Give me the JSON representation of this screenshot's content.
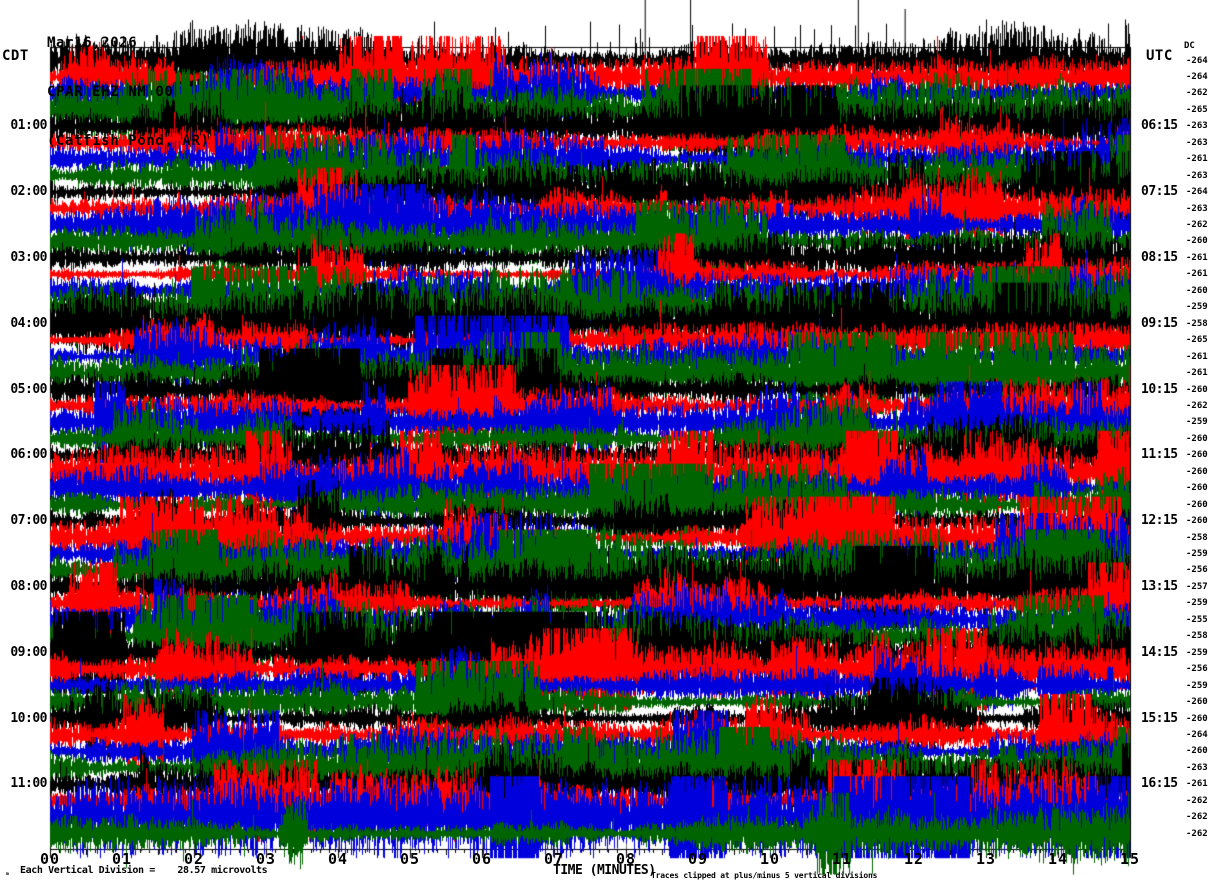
{
  "header": {
    "date": "Mar16,2026",
    "station": "CPAR EHZ NM 00",
    "location": "(Catfish Pond, AR)"
  },
  "axes": {
    "left_header": "CDT",
    "right_header": "UTC",
    "dc_header": "DC",
    "left_labels": [
      "01:00",
      "02:00",
      "03:00",
      "04:00",
      "05:00",
      "06:00",
      "07:00",
      "08:00",
      "09:00",
      "10:00",
      "11:00"
    ],
    "right_labels": [
      "06:15",
      "07:15",
      "08:15",
      "09:15",
      "10:15",
      "11:15",
      "12:15",
      "13:15",
      "14:15",
      "15:15",
      "16:15"
    ],
    "x_tick_labels": [
      "00",
      "01",
      "02",
      "03",
      "04",
      "05",
      "06",
      "07",
      "08",
      "09",
      "10",
      "11",
      "12",
      "13",
      "14",
      "15"
    ],
    "x_axis_title": "TIME (MINUTES)"
  },
  "footer": {
    "corner_glyph": "ₘ",
    "scale_note": "Each Vertical Division =    28.57 microvolts",
    "clip_note": "Traces clipped at plus/minus 5 vertical divisions"
  },
  "chart_data": {
    "type": "helicorder",
    "title": "CPAR EHZ NM 00 (Catfish Pond, AR) Mar16,2026",
    "content": "continuous high-amplitude ambient seismic noise on every trace line, clipped at plus/minus 5 vertical divisions",
    "minutes_per_line": 15,
    "lines": 48,
    "lines_per_hour": 4,
    "local_timezone": "CDT",
    "utc_offset_note": "right labels are UTC, left labels CDT",
    "microvolts_per_division": 28.57,
    "clip_divisions": 5,
    "trace_color_cycle": [
      "#000000",
      "#FF0000",
      "#0000DD",
      "#006400"
    ],
    "grid_color": "#808080",
    "frame_color": "#000000",
    "dc_offsets": [
      -264,
      -264,
      -262,
      -265,
      -263,
      -263,
      -261,
      -263,
      -264,
      -263,
      -262,
      -260,
      -261,
      -261,
      -260,
      -259,
      -258,
      -265,
      -261,
      -261,
      -260,
      -262,
      -259,
      -260,
      -260,
      -260,
      -260,
      -260,
      -260,
      -258,
      -259,
      -256,
      -257,
      -259,
      -255,
      -258,
      -259,
      -256,
      -259,
      -260,
      -260,
      -264,
      -260,
      -263,
      -261,
      -262,
      -262,
      -262
    ],
    "top_trace_spikes_minutes": [
      8.26,
      8.89,
      11.22,
      11.87
    ],
    "top_trace_busy_range_minutes": [
      4.6,
      12.0
    ],
    "x_minor_ticks_per_minute": 8,
    "noise_seed": 1234567
  }
}
